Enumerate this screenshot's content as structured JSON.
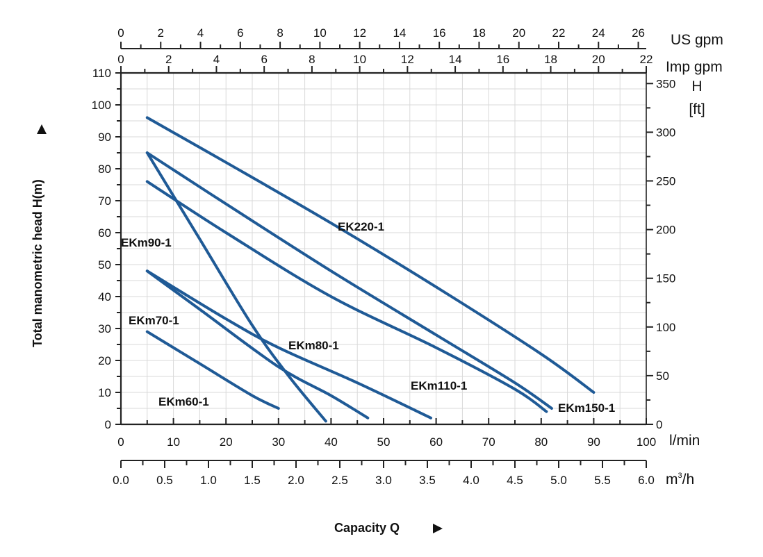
{
  "chart_data": {
    "type": "line",
    "title": "",
    "xlabel": "Capacity Q",
    "ylabel": "Total manometric head H(m)",
    "xlim": [
      0,
      100
    ],
    "ylim": [
      0,
      110
    ],
    "grid": true,
    "x_unit": "l/min",
    "x_ticks": [
      "0",
      "10",
      "20",
      "30",
      "40",
      "50",
      "60",
      "70",
      "80",
      "90",
      "100"
    ],
    "y_ticks": [
      "0",
      "10",
      "20",
      "30",
      "40",
      "50",
      "60",
      "70",
      "80",
      "90",
      "100",
      "110"
    ],
    "secondary_axes": {
      "m3h": {
        "unit": "m³/h",
        "unit_base": "m",
        "unit_sup": "3",
        "unit_rest": "/h",
        "range": [
          0,
          6
        ],
        "ticks": [
          "0.0",
          "0.5",
          "1.0",
          "1.5",
          "2.0",
          "2.5",
          "3.0",
          "3.5",
          "4.0",
          "4.5",
          "5.0",
          "5.5",
          "6.0"
        ]
      },
      "us_gpm": {
        "unit": "US gpm",
        "range": [
          0,
          26.4
        ],
        "ticks": [
          "0",
          "2",
          "4",
          "6",
          "8",
          "10",
          "12",
          "14",
          "16",
          "18",
          "20",
          "22",
          "24",
          "26"
        ]
      },
      "imp_gpm": {
        "unit": "Imp gpm",
        "range": [
          0,
          22
        ],
        "ticks": [
          "0",
          "2",
          "4",
          "6",
          "8",
          "10",
          "12",
          "14",
          "16",
          "18",
          "20",
          "22"
        ]
      },
      "ft": {
        "unit_line1": "H",
        "unit_line2": "[ft]",
        "range": [
          0,
          360.9
        ],
        "ticks": [
          "0",
          "50",
          "100",
          "150",
          "200",
          "250",
          "300",
          "350"
        ]
      }
    },
    "series": [
      {
        "name": "EK220-1",
        "x": [
          5,
          20,
          40,
          60,
          80,
          90
        ],
        "y": [
          96,
          82,
          63,
          43,
          22,
          10
        ]
      },
      {
        "name": "EKm150-1",
        "x": [
          5,
          20,
          40,
          60,
          75,
          82
        ],
        "y": [
          85,
          69,
          48,
          28,
          13,
          5
        ]
      },
      {
        "name": "EKm110-1",
        "x": [
          5,
          20,
          40,
          60,
          75,
          81
        ],
        "y": [
          76,
          60,
          40,
          24,
          11,
          4
        ]
      },
      {
        "name": "EKm90-1",
        "x": [
          5,
          15,
          25,
          32,
          39
        ],
        "y": [
          85,
          58,
          31,
          15,
          1
        ]
      },
      {
        "name": "EKm80-1",
        "x": [
          5,
          20,
          30,
          45,
          59
        ],
        "y": [
          48,
          33,
          24,
          13,
          2
        ]
      },
      {
        "name": "EKm70-1",
        "x": [
          5,
          15,
          30,
          40,
          47
        ],
        "y": [
          48,
          36,
          18,
          9,
          2
        ]
      },
      {
        "name": "EKm60-1",
        "x": [
          5,
          15,
          25,
          30
        ],
        "y": [
          29,
          19,
          9,
          5
        ]
      }
    ],
    "line_color": "#1f5a96"
  }
}
